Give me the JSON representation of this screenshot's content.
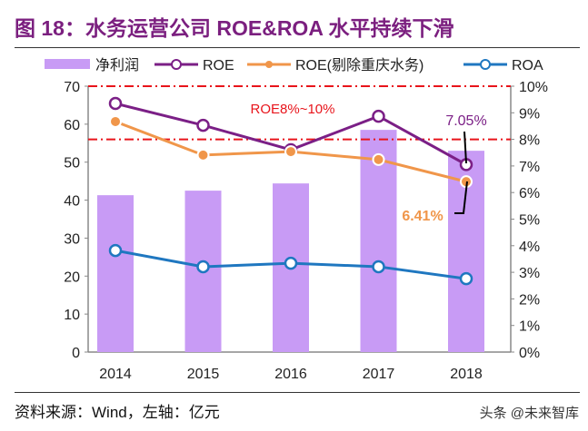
{
  "title": "图 18：水务运营公司 ROE&ROA 水平持续下滑",
  "source": "资料来源：Wind，左轴：亿元",
  "watermark": "头条 @未来智库",
  "chart_data": {
    "type": "bar+line",
    "categories": [
      "2014",
      "2015",
      "2016",
      "2017",
      "2018"
    ],
    "left_axis": {
      "ylim": [
        0,
        70
      ],
      "ticks": [
        "0",
        "10",
        "20",
        "30",
        "40",
        "50",
        "60",
        "70"
      ]
    },
    "right_axis": {
      "ylim": [
        0,
        10
      ],
      "ticks": [
        "0%",
        "1%",
        "2%",
        "3%",
        "4%",
        "5%",
        "6%",
        "7%",
        "8%",
        "9%",
        "10%"
      ]
    },
    "legend_position": "top",
    "series": [
      {
        "name": "净利润",
        "type": "bar",
        "axis": "left",
        "color": "#C89BF5",
        "values": [
          41.3,
          42.5,
          44.4,
          58.5,
          53.0
        ]
      },
      {
        "name": "ROE",
        "type": "line",
        "axis": "right",
        "color": "#7B1F86",
        "marker": "hollow-circle",
        "values": [
          9.35,
          8.53,
          7.61,
          8.87,
          7.05
        ]
      },
      {
        "name": "ROE(剔除重庆水务)",
        "type": "line",
        "axis": "right",
        "color": "#F0964A",
        "marker": "filled-circle",
        "values": [
          8.67,
          7.41,
          7.54,
          7.24,
          6.41
        ]
      },
      {
        "name": "ROA",
        "type": "line",
        "axis": "right",
        "color": "#1F77C0",
        "marker": "hollow-circle",
        "values": [
          3.82,
          3.21,
          3.34,
          3.21,
          2.76
        ]
      }
    ],
    "reference_lines": [
      {
        "value": 10,
        "axis": "right",
        "color": "#E8141B"
      },
      {
        "value": 8,
        "axis": "right",
        "color": "#E8141B"
      }
    ],
    "annotations": [
      {
        "text": "ROE8%~10%",
        "color": "#E8141B"
      },
      {
        "text": "7.05%",
        "color": "#7B1F86"
      },
      {
        "text": "6.41%",
        "color": "#F0964A"
      }
    ]
  }
}
